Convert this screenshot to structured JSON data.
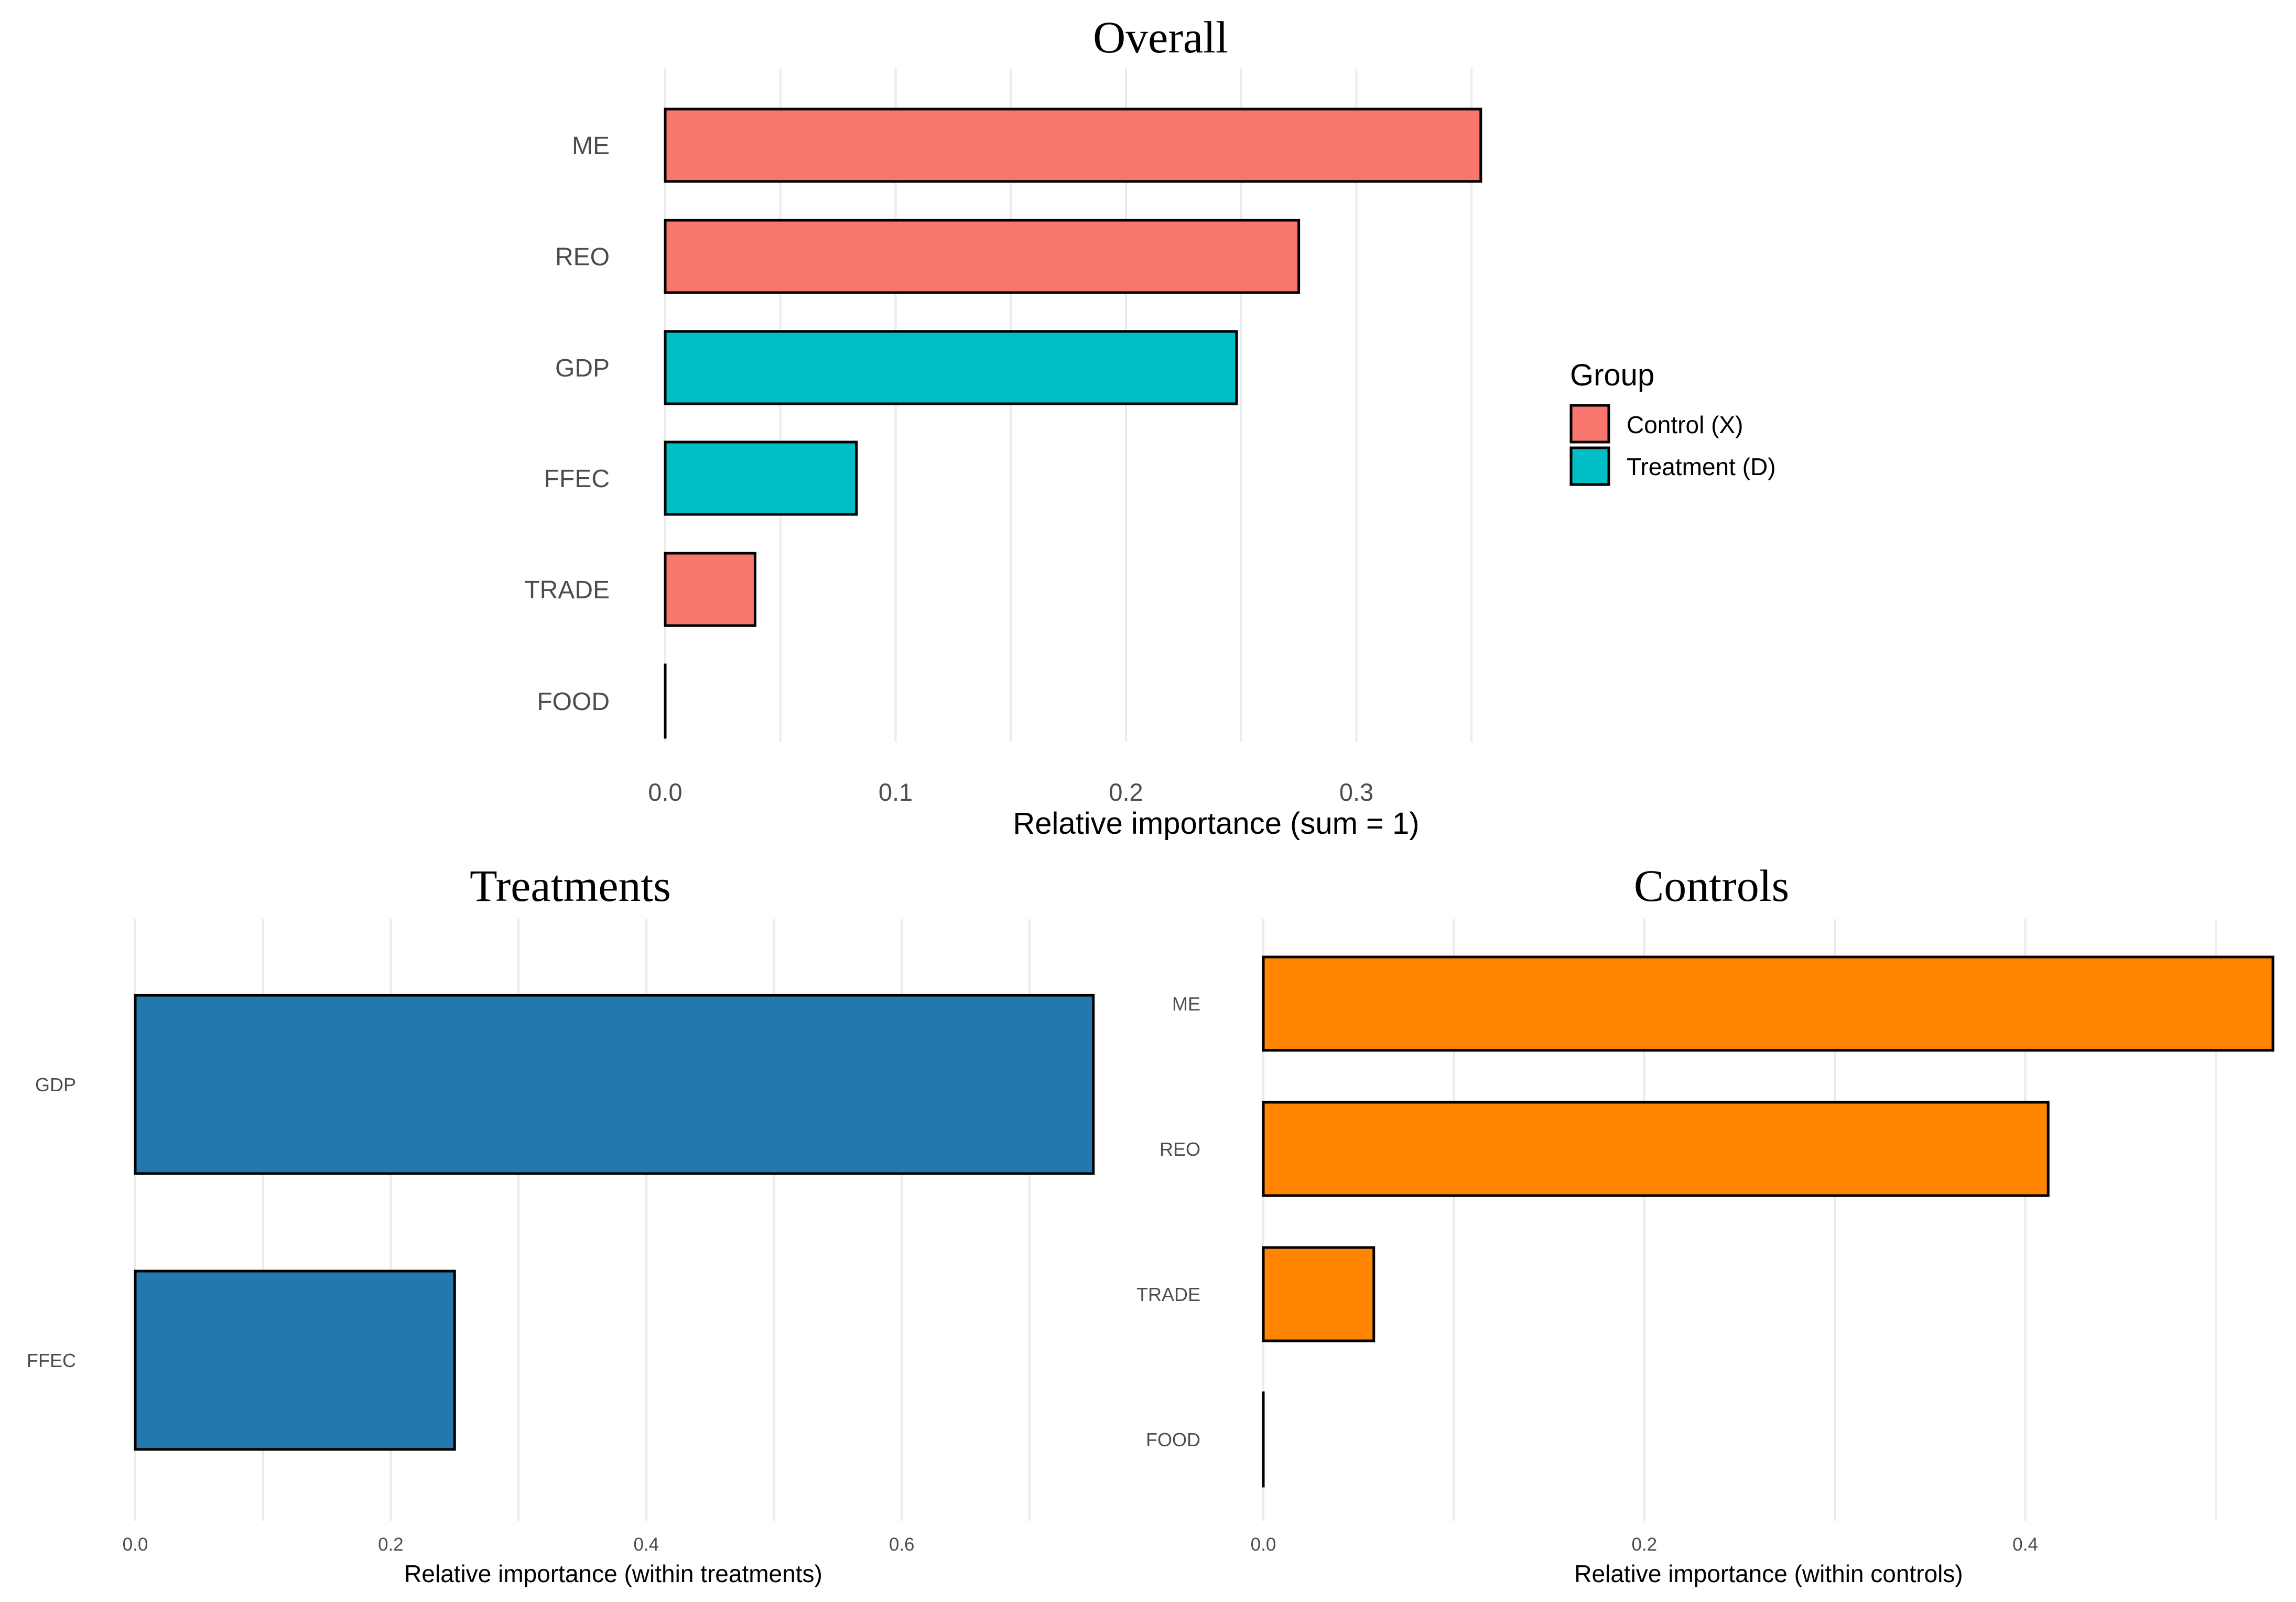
{
  "chart_data": [
    {
      "id": "overall",
      "type": "bar",
      "orientation": "horizontal",
      "title": "Overall",
      "xlabel": "Relative importance (sum = 1)",
      "ylabel": "",
      "xlim": [
        0,
        0.36
      ],
      "xticks": [
        0.0,
        0.1,
        0.2,
        0.3
      ],
      "xtick_labels": [
        "0.0",
        "0.1",
        "0.2",
        "0.3"
      ],
      "categories": [
        "ME",
        "REO",
        "GDP",
        "FFEC",
        "TRADE",
        "FOOD"
      ],
      "values": [
        0.354,
        0.275,
        0.248,
        0.083,
        0.039,
        0.0
      ],
      "groups": [
        "Control (X)",
        "Control (X)",
        "Treatment (D)",
        "Treatment (D)",
        "Control (X)",
        "Control (X)"
      ],
      "grid": true,
      "legend": {
        "title": "Group",
        "placement": "right",
        "entries": [
          {
            "label": "Control (X)",
            "color": "#F8766D"
          },
          {
            "label": "Treatment (D)",
            "color": "#00BFC4"
          }
        ]
      }
    },
    {
      "id": "treatments",
      "type": "bar",
      "orientation": "horizontal",
      "title": "Treatments",
      "xlabel": "Relative importance (within treatments)",
      "ylabel": "",
      "xlim": [
        0,
        0.75
      ],
      "xticks": [
        0.0,
        0.2,
        0.4,
        0.6
      ],
      "xtick_labels": [
        "0.0",
        "0.2",
        "0.4",
        "0.6"
      ],
      "categories": [
        "GDP",
        "FFEC"
      ],
      "values": [
        0.75,
        0.25
      ],
      "color": "#2378AE",
      "grid": true
    },
    {
      "id": "controls",
      "type": "bar",
      "orientation": "horizontal",
      "title": "Controls",
      "xlabel": "Relative importance (within controls)",
      "ylabel": "",
      "xlim": [
        0,
        0.53
      ],
      "xticks": [
        0.0,
        0.2,
        0.4
      ],
      "xtick_labels": [
        "0.0",
        "0.2",
        "0.4"
      ],
      "categories": [
        "ME",
        "REO",
        "TRADE",
        "FOOD"
      ],
      "values": [
        0.53,
        0.412,
        0.058,
        0.0
      ],
      "color": "#FF8500",
      "grid": true
    }
  ]
}
